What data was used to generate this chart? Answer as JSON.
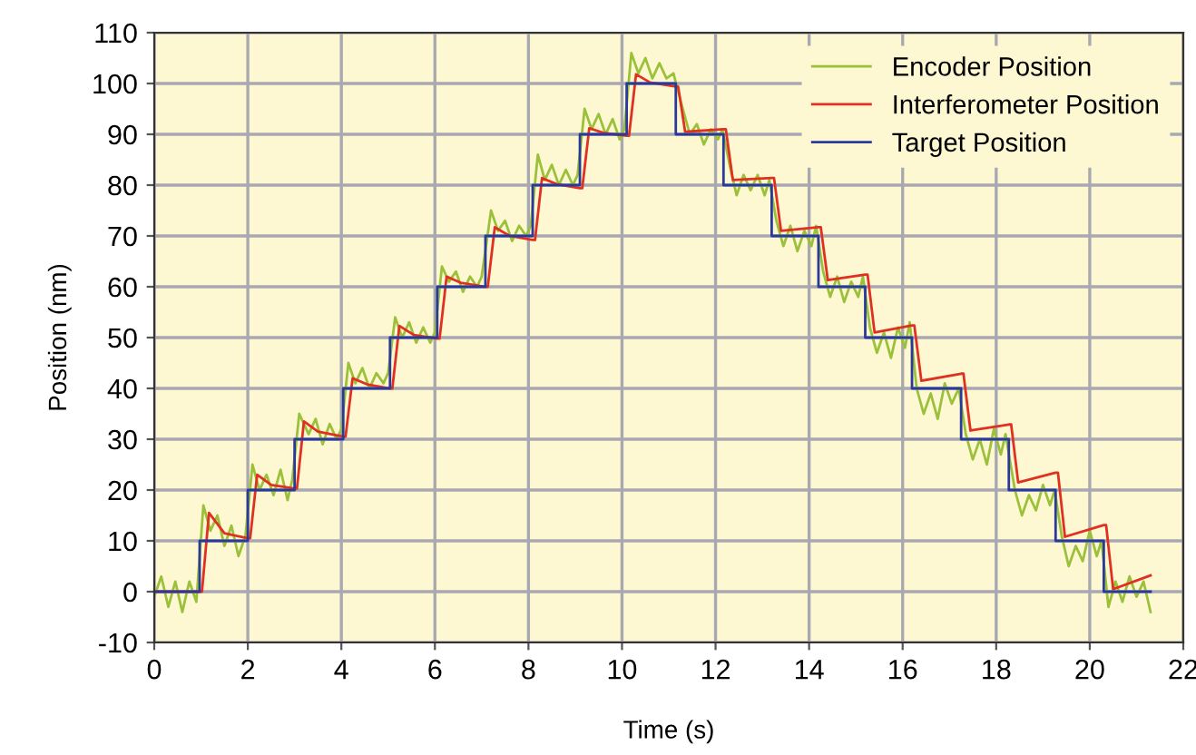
{
  "chart_data": {
    "type": "line",
    "xlabel": "Time (s)",
    "ylabel": "Position (nm)",
    "xlim": [
      0,
      22
    ],
    "ylim": [
      -10,
      110
    ],
    "xticks": [
      0,
      2,
      4,
      6,
      8,
      10,
      12,
      14,
      16,
      18,
      20,
      22
    ],
    "yticks": [
      -10,
      0,
      10,
      20,
      30,
      40,
      50,
      60,
      70,
      80,
      90,
      100,
      110
    ],
    "grid": true,
    "legend": "top right",
    "marker": "none",
    "line_style": "solid",
    "series": [
      {
        "name": "Encoder Position",
        "color": "#9bc13a",
        "x": [
          0,
          0.15,
          0.3,
          0.45,
          0.6,
          0.75,
          0.9,
          1.05,
          1.2,
          1.35,
          1.5,
          1.65,
          1.8,
          1.95,
          2.1,
          2.25,
          2.4,
          2.55,
          2.7,
          2.85,
          2.95,
          3.1,
          3.3,
          3.45,
          3.6,
          3.75,
          3.9,
          4.0,
          4.15,
          4.3,
          4.45,
          4.6,
          4.75,
          4.9,
          5.0,
          5.15,
          5.3,
          5.45,
          5.6,
          5.75,
          5.9,
          6.0,
          6.15,
          6.3,
          6.45,
          6.6,
          6.75,
          6.9,
          7.0,
          7.2,
          7.35,
          7.5,
          7.65,
          7.8,
          7.95,
          8.05,
          8.2,
          8.35,
          8.5,
          8.65,
          8.8,
          8.95,
          9.05,
          9.2,
          9.35,
          9.5,
          9.65,
          9.8,
          9.95,
          10.05,
          10.2,
          10.35,
          10.5,
          10.65,
          10.8,
          10.95,
          11.1,
          11.3,
          11.45,
          11.6,
          11.75,
          11.9,
          12.05,
          12.15,
          12.3,
          12.45,
          12.6,
          12.75,
          12.9,
          13.05,
          13.15,
          13.3,
          13.45,
          13.6,
          13.75,
          13.9,
          14.05,
          14.15,
          14.3,
          14.45,
          14.6,
          14.75,
          14.9,
          15.05,
          15.15,
          15.3,
          15.45,
          15.6,
          15.75,
          15.9,
          16.05,
          16.15,
          16.3,
          16.45,
          16.6,
          16.75,
          16.9,
          17.05,
          17.2,
          17.35,
          17.5,
          17.65,
          17.8,
          17.95,
          18.1,
          18.2,
          18.4,
          18.55,
          18.7,
          18.85,
          19.0,
          19.15,
          19.25,
          19.4,
          19.55,
          19.7,
          19.85,
          20.0,
          20.15,
          20.25,
          20.4,
          20.55,
          20.7,
          20.85,
          21.0,
          21.15,
          21.3
        ],
        "values": [
          -1,
          3,
          -3,
          2,
          -4,
          2,
          -2,
          17,
          12,
          15,
          9,
          13,
          7,
          11,
          25,
          20,
          23,
          19,
          24,
          18,
          22,
          35,
          31,
          34,
          29,
          33,
          30,
          32,
          45,
          41,
          44,
          40,
          43,
          41,
          43,
          54,
          50,
          53,
          49,
          52,
          49,
          51,
          64,
          61,
          63,
          59,
          62,
          60,
          62,
          75,
          71,
          73,
          69,
          72,
          70,
          72,
          86,
          81,
          84,
          80,
          83,
          80,
          82,
          95,
          91,
          94,
          90,
          93,
          89,
          91,
          106,
          102,
          105,
          101,
          104,
          101,
          102,
          95,
          90,
          92,
          88,
          91,
          89,
          91,
          84,
          78,
          82,
          79,
          82,
          78,
          81,
          73,
          68,
          72,
          67,
          71,
          68,
          72,
          63,
          58,
          62,
          57,
          61,
          58,
          62,
          52,
          47,
          51,
          46,
          52,
          48,
          53,
          40,
          35,
          39,
          34,
          41,
          37,
          40,
          31,
          26,
          30,
          25,
          32,
          27,
          31,
          20,
          15,
          19,
          16,
          21,
          17,
          20,
          11,
          5,
          9,
          6,
          12,
          7,
          10,
          -3,
          2,
          -2,
          3,
          -1,
          2,
          -4
        ]
      },
      {
        "name": "Interferometer Position",
        "color": "#e03020",
        "x": [
          0,
          0.97,
          1.02,
          1.17,
          1.5,
          2.0,
          2.05,
          2.2,
          2.5,
          3.0,
          3.05,
          3.2,
          3.5,
          4.04,
          4.09,
          4.24,
          4.55,
          5.04,
          5.09,
          5.24,
          5.55,
          6.05,
          6.1,
          6.25,
          6.55,
          7.08,
          7.13,
          7.28,
          7.6,
          8.09,
          8.14,
          8.29,
          8.6,
          9.1,
          9.15,
          9.3,
          9.6,
          10.1,
          10.15,
          10.3,
          10.6,
          11.15,
          11.2,
          11.35,
          12.17,
          12.22,
          12.37,
          13.2,
          13.25,
          13.4,
          14.2,
          14.25,
          14.4,
          15.2,
          15.25,
          15.4,
          16.2,
          16.25,
          16.4,
          17.25,
          17.3,
          17.45,
          18.27,
          18.32,
          18.47,
          19.27,
          19.32,
          19.47,
          20.3,
          20.35,
          20.5,
          21.3
        ],
        "values": [
          0,
          0,
          0,
          15.5,
          11.5,
          10.5,
          10.5,
          23,
          21,
          20.3,
          20.3,
          33.5,
          31.5,
          30.5,
          30.5,
          42,
          40.8,
          40,
          40,
          52.3,
          50.5,
          49.8,
          49.8,
          62,
          60.8,
          60,
          60,
          71.7,
          70,
          69.2,
          69.2,
          81.4,
          80.2,
          79.4,
          79.4,
          91.2,
          90.3,
          89.7,
          89.7,
          101.8,
          100.2,
          99.4,
          99.4,
          90.5,
          91,
          91,
          81,
          81.4,
          81.4,
          71,
          71.7,
          71.7,
          61.3,
          62.4,
          62.4,
          51,
          52.4,
          52.4,
          41.5,
          42.9,
          42.9,
          31.7,
          32.9,
          32.9,
          21.5,
          23.4,
          23.4,
          10.8,
          13.1,
          13.1,
          0.5,
          3.2
        ]
      },
      {
        "name": "Target Position",
        "color": "#2a3a9a",
        "type": "step",
        "x": [
          0,
          0.97,
          2.0,
          3.0,
          4.04,
          5.04,
          6.05,
          7.08,
          8.09,
          9.1,
          10.1,
          11.15,
          12.17,
          13.2,
          14.2,
          15.2,
          16.2,
          17.25,
          18.27,
          19.27,
          20.3,
          21.3
        ],
        "values": [
          0,
          10,
          20,
          30,
          40,
          50,
          60,
          70,
          80,
          90,
          100,
          90,
          80,
          70,
          60,
          50,
          40,
          30,
          20,
          10,
          0,
          0
        ]
      }
    ]
  }
}
